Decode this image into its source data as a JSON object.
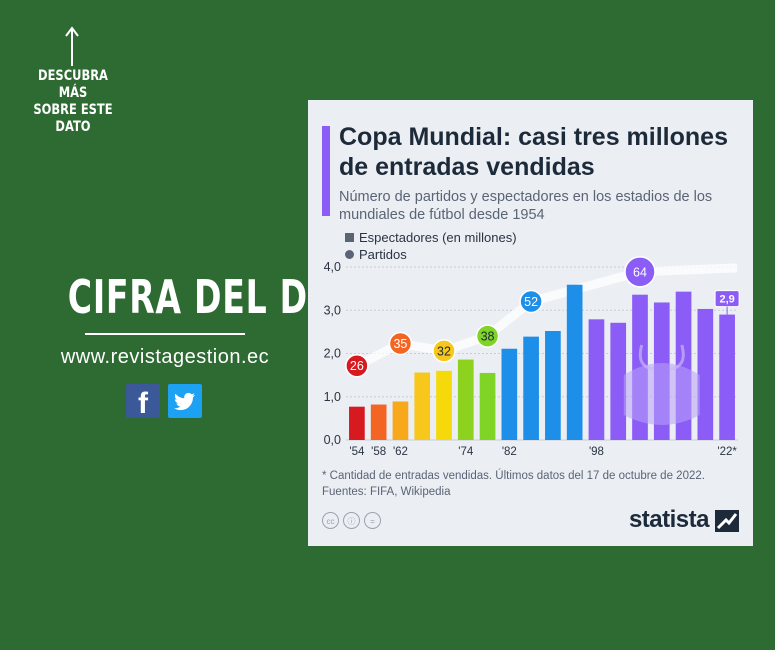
{
  "sidebar": {
    "cta_lines": [
      "DESCUBRA MÁS",
      "SOBRE ESTE",
      "DATO"
    ],
    "heading": "CIFRA DEL DÍA",
    "website": "www.revistagestion.ec",
    "social": [
      {
        "icon": "facebook-icon",
        "glyph": "f",
        "color": "#3b5998"
      },
      {
        "icon": "twitter-icon",
        "glyph": "🐦",
        "color": "#1da1f2"
      }
    ]
  },
  "card": {
    "title": "Copa Mundial: casi tres millones de entradas vendidas",
    "subtitle": "Número de partidos y espectadores en los estadios de los mundiales de fútbol desde 1954",
    "footnote": "* Cantidad de entradas vendidas. Últimos datos del 17 de octubre de 2022.",
    "sources": "Fuentes: FIFA, Wikipedia",
    "license_icons": [
      "cc",
      "ⓘ",
      "="
    ],
    "brand": "statista"
  },
  "chart_data": {
    "type": "bar",
    "title": "Copa Mundial: casi tres millones de entradas vendidas",
    "subtitle": "Número de partidos y espectadores en los estadios de los mundiales de fútbol desde 1954",
    "legend": [
      "Espectadores (en millones)",
      "Partidos"
    ],
    "legend_position": "top-left",
    "ylim": [
      0,
      4.0
    ],
    "yticks": [
      "0,0",
      "1,0",
      "2,0",
      "3,0",
      "4,0"
    ],
    "grid": true,
    "years": [
      1954,
      1958,
      1962,
      1966,
      1970,
      1974,
      1978,
      1982,
      1986,
      1990,
      1994,
      1998,
      2002,
      2006,
      2010,
      2014,
      2018,
      2022
    ],
    "xtick_labels": [
      "'54",
      "'58",
      "'62",
      "",
      "",
      "'74",
      "",
      "'82",
      "",
      "",
      "",
      "'98",
      "",
      "",
      "",
      "",
      "",
      "'22*"
    ],
    "series": [
      {
        "name": "Espectadores (en millones)",
        "values": [
          0.77,
          0.82,
          0.89,
          1.56,
          1.6,
          1.86,
          1.55,
          2.11,
          2.39,
          2.52,
          3.59,
          2.79,
          2.71,
          3.36,
          3.18,
          3.43,
          3.03,
          2.9
        ]
      }
    ],
    "colors": [
      "#d71920",
      "#f26522",
      "#f7a81b",
      "#f7c81b",
      "#f5d90a",
      "#8cd21e",
      "#7fd425",
      "#1e8fe8",
      "#1e8fe8",
      "#1e8fe8",
      "#1e8fe8",
      "#8b5cf6",
      "#8b5cf6",
      "#8b5cf6",
      "#8b5cf6",
      "#8b5cf6",
      "#8b5cf6",
      "#8b5cf6"
    ],
    "last_value_label": "2,9",
    "matches": [
      {
        "year": 1954,
        "value": 26,
        "color": "#d71920"
      },
      {
        "year": 1962,
        "value": 35,
        "color": "#f26522"
      },
      {
        "year": 1970,
        "value": 32,
        "color": "#f7c81b"
      },
      {
        "year": 1978,
        "value": 38,
        "color": "#7fd425"
      },
      {
        "year": 1986,
        "value": 52,
        "color": "#1e8fe8"
      },
      {
        "year": 2006,
        "value": 64,
        "color": "#8b5cf6"
      }
    ]
  }
}
